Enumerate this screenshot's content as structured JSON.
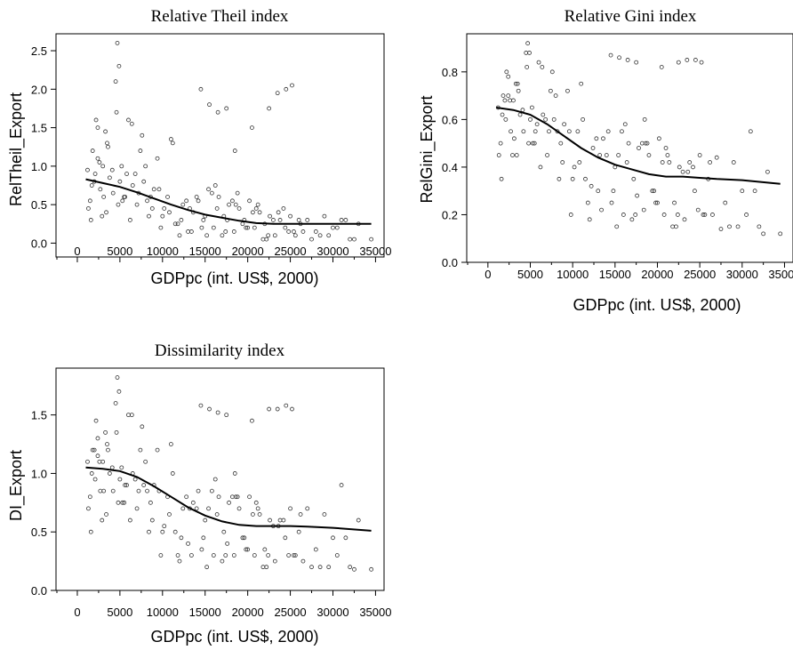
{
  "chart_data": [
    {
      "type": "scatter",
      "title": "Relative Theil index",
      "xlabel": "GDPpc (int. US$, 2000)",
      "ylabel": "RelTheil_Export",
      "xlim": [
        -2500,
        36000
      ],
      "ylim": [
        -0.18,
        2.72
      ],
      "xticks": [
        "0",
        "5000",
        "10000",
        "15000",
        "20000",
        "25000",
        "30000",
        "35000"
      ],
      "yticks": [
        "0.0",
        "0.5",
        "1.0",
        "1.5",
        "2.0",
        "2.5"
      ],
      "grid": false,
      "legend": "none",
      "fit_line": {
        "x": [
          1000,
          3000,
          5000,
          7000,
          9000,
          11000,
          13000,
          15000,
          17000,
          19000,
          21000,
          23000,
          25000,
          27000,
          30000,
          34500
        ],
        "y": [
          0.83,
          0.78,
          0.73,
          0.66,
          0.58,
          0.5,
          0.43,
          0.37,
          0.33,
          0.29,
          0.26,
          0.25,
          0.25,
          0.25,
          0.25,
          0.25
        ]
      },
      "points": {
        "x": [
          1200,
          1500,
          1800,
          2100,
          2400,
          2700,
          3000,
          3400,
          3800,
          4200,
          4600,
          5000,
          5500,
          6000,
          6500,
          7000,
          7600,
          8200,
          8800,
          9400,
          10000,
          10600,
          11200,
          11800,
          12400,
          13000,
          13600,
          14200,
          14800,
          15400,
          16000,
          16600,
          17200,
          17800,
          18400,
          19000,
          19600,
          20200,
          20800,
          21400,
          22000,
          22600,
          23200,
          23800,
          24400,
          25000,
          25600,
          26200,
          27000,
          28000,
          29000,
          30000,
          31000,
          32000,
          33000,
          34500,
          1300,
          1700,
          2200,
          2600,
          3100,
          3600,
          4100,
          4500,
          4800,
          5200,
          5800,
          6400,
          7200,
          8000,
          9000,
          10200,
          11500,
          12800,
          14000,
          15200,
          16400,
          17600,
          18800,
          20000,
          21200,
          22400,
          23600,
          24800,
          26000,
          27500,
          29500,
          31500,
          14500,
          15500,
          16500,
          17500,
          18500,
          20500,
          22500,
          23500,
          24500,
          25200,
          4700,
          4900,
          2000,
          2900,
          3300,
          6200,
          6800,
          7800,
          8600,
          9800,
          10800,
          12000,
          13200,
          14600,
          15800,
          17000,
          18200,
          19400,
          20600,
          21800,
          23000,
          24200,
          25400,
          1600,
          2400,
          3500,
          5300,
          5600,
          7400,
          8400,
          9600,
          11000,
          12200,
          13400,
          15000,
          16200,
          17400,
          18600,
          19800,
          21000,
          22200,
          26500,
          28500,
          30500,
          32500
        ],
        "y": [
          0.95,
          0.55,
          1.2,
          0.9,
          1.5,
          0.7,
          1.0,
          0.4,
          0.85,
          0.65,
          1.7,
          0.8,
          0.6,
          1.6,
          0.75,
          0.5,
          1.4,
          0.55,
          0.45,
          1.1,
          0.35,
          0.6,
          1.3,
          0.25,
          0.5,
          0.15,
          0.4,
          0.55,
          0.3,
          0.7,
          0.2,
          0.6,
          0.35,
          0.5,
          0.15,
          0.45,
          0.3,
          0.55,
          0.2,
          0.4,
          0.25,
          0.35,
          0.1,
          0.3,
          0.2,
          0.35,
          0.1,
          0.25,
          0.3,
          0.15,
          0.35,
          0.2,
          0.3,
          0.05,
          0.25,
          0.05,
          0.45,
          0.75,
          1.6,
          1.05,
          0.6,
          1.25,
          0.95,
          2.1,
          0.5,
          1.0,
          0.9,
          1.55,
          0.65,
          1.0,
          0.7,
          0.45,
          0.25,
          0.55,
          0.6,
          0.1,
          0.45,
          0.3,
          0.65,
          0.2,
          0.5,
          0.1,
          0.4,
          0.15,
          0.3,
          0.05,
          0.1,
          0.3,
          2.0,
          1.8,
          1.7,
          1.75,
          1.2,
          1.5,
          1.75,
          1.95,
          2.0,
          2.05,
          2.6,
          2.3,
          0.8,
          0.35,
          1.45,
          0.3,
          0.9,
          0.8,
          0.6,
          0.2,
          0.4,
          0.1,
          0.45,
          0.2,
          0.65,
          0.1,
          0.55,
          0.25,
          0.4,
          0.05,
          0.3,
          0.45,
          0.15,
          0.3,
          1.1,
          1.3,
          0.55,
          0.6,
          1.2,
          0.35,
          0.7,
          1.35,
          0.3,
          0.15,
          0.35,
          0.75,
          0.15,
          0.5,
          0.2,
          0.45,
          0.05,
          0.15,
          0.1,
          0.2,
          0.05
        ]
      }
    },
    {
      "type": "scatter",
      "title": "Relative Gini index",
      "xlabel": "GDPpc (int. US$, 2000)",
      "ylabel": "RelGini_Export",
      "xlim": [
        -2500,
        36000
      ],
      "ylim": [
        0.0,
        0.96
      ],
      "xticks": [
        "0",
        "5000",
        "10000",
        "15000",
        "20000",
        "25000",
        "30000",
        "35000"
      ],
      "yticks": [
        "0.0",
        "0.2",
        "0.4",
        "0.6",
        "0.8"
      ],
      "grid": false,
      "legend": "none",
      "fit_line": {
        "x": [
          1000,
          3000,
          5000,
          7000,
          9000,
          11000,
          13000,
          15000,
          17000,
          19000,
          21000,
          23000,
          25000,
          27000,
          30000,
          34500
        ],
        "y": [
          0.65,
          0.64,
          0.62,
          0.58,
          0.53,
          0.48,
          0.44,
          0.41,
          0.39,
          0.37,
          0.36,
          0.36,
          0.355,
          0.35,
          0.345,
          0.33
        ]
      },
      "points": {
        "x": [
          1200,
          1500,
          1800,
          2100,
          2400,
          2700,
          3000,
          3400,
          3800,
          4200,
          4600,
          5000,
          5500,
          6000,
          6500,
          7000,
          7600,
          8200,
          8800,
          9400,
          10000,
          10600,
          11200,
          11800,
          12400,
          13000,
          13600,
          14200,
          14800,
          15400,
          16000,
          16600,
          17200,
          17800,
          18400,
          19000,
          19600,
          20200,
          20800,
          21400,
          22000,
          22600,
          23200,
          23800,
          24400,
          25000,
          25600,
          26200,
          27000,
          28000,
          29000,
          30000,
          31000,
          32000,
          33000,
          34500,
          1300,
          1700,
          2200,
          2600,
          3100,
          3600,
          4100,
          4500,
          4800,
          5200,
          5800,
          6400,
          7200,
          8000,
          9000,
          10200,
          11500,
          12800,
          14000,
          15200,
          16400,
          17600,
          18800,
          20000,
          21200,
          22400,
          23600,
          24800,
          26000,
          27500,
          29500,
          31500,
          14500,
          15500,
          16500,
          17500,
          18500,
          20500,
          22500,
          23500,
          24500,
          25200,
          4700,
          4900,
          2000,
          2900,
          3300,
          6200,
          6800,
          7800,
          8600,
          9800,
          10800,
          12000,
          13200,
          14600,
          15800,
          17000,
          18200,
          19400,
          20600,
          21800,
          23000,
          24200,
          25400,
          1600,
          2400,
          3500,
          5300,
          5600,
          7400,
          8400,
          9600,
          11000,
          12200,
          13400,
          15000,
          16200,
          17400,
          18600,
          19800,
          21000,
          22200,
          26500,
          28500,
          30500,
          32500
        ],
        "y": [
          0.65,
          0.5,
          0.7,
          0.6,
          0.78,
          0.55,
          0.68,
          0.45,
          0.62,
          0.55,
          0.82,
          0.6,
          0.5,
          0.84,
          0.62,
          0.45,
          0.8,
          0.55,
          0.42,
          0.72,
          0.35,
          0.55,
          0.6,
          0.25,
          0.48,
          0.3,
          0.52,
          0.55,
          0.3,
          0.45,
          0.2,
          0.5,
          0.35,
          0.48,
          0.22,
          0.45,
          0.3,
          0.52,
          0.2,
          0.42,
          0.25,
          0.4,
          0.18,
          0.42,
          0.3,
          0.45,
          0.2,
          0.42,
          0.44,
          0.25,
          0.42,
          0.3,
          0.55,
          0.15,
          0.38,
          0.12,
          0.45,
          0.62,
          0.8,
          0.68,
          0.52,
          0.72,
          0.64,
          0.88,
          0.5,
          0.65,
          0.58,
          0.82,
          0.55,
          0.7,
          0.58,
          0.4,
          0.35,
          0.52,
          0.45,
          0.15,
          0.42,
          0.28,
          0.5,
          0.25,
          0.45,
          0.2,
          0.38,
          0.22,
          0.35,
          0.14,
          0.15,
          0.3,
          0.87,
          0.86,
          0.85,
          0.84,
          0.6,
          0.82,
          0.84,
          0.85,
          0.85,
          0.84,
          0.92,
          0.88,
          0.68,
          0.45,
          0.75,
          0.4,
          0.6,
          0.6,
          0.5,
          0.2,
          0.42,
          0.18,
          0.45,
          0.25,
          0.55,
          0.18,
          0.5,
          0.3,
          0.42,
          0.15,
          0.38,
          0.4,
          0.2,
          0.35,
          0.7,
          0.75,
          0.5,
          0.55,
          0.72,
          0.35,
          0.55,
          0.75,
          0.32,
          0.22,
          0.4,
          0.58,
          0.2,
          0.5,
          0.25,
          0.48,
          0.15,
          0.2,
          0.15,
          0.2,
          0.12
        ]
      }
    },
    {
      "type": "scatter",
      "title": "Dissimilarity index",
      "xlabel": "GDPpc (int. US$, 2000)",
      "ylabel": "DI_Export",
      "xlim": [
        -2500,
        36000
      ],
      "ylim": [
        0.0,
        1.9
      ],
      "xticks": [
        "0",
        "5000",
        "10000",
        "15000",
        "20000",
        "25000",
        "30000",
        "35000"
      ],
      "yticks": [
        "0.0",
        "0.5",
        "1.0",
        "1.5"
      ],
      "grid": false,
      "legend": "none",
      "fit_line": {
        "x": [
          1000,
          3000,
          5000,
          7000,
          9000,
          11000,
          13000,
          15000,
          17000,
          19000,
          21000,
          23000,
          25000,
          27000,
          30000,
          34500
        ],
        "y": [
          1.05,
          1.04,
          1.02,
          0.97,
          0.89,
          0.8,
          0.71,
          0.64,
          0.59,
          0.56,
          0.55,
          0.55,
          0.55,
          0.545,
          0.535,
          0.51
        ]
      },
      "points": {
        "x": [
          1200,
          1500,
          1800,
          2100,
          2400,
          2700,
          3000,
          3400,
          3800,
          4200,
          4600,
          5000,
          5500,
          6000,
          6500,
          7000,
          7600,
          8200,
          8800,
          9400,
          10000,
          10600,
          11200,
          11800,
          12400,
          13000,
          13600,
          14200,
          14800,
          15400,
          16000,
          16600,
          17200,
          17800,
          18400,
          19000,
          19600,
          20200,
          20800,
          21400,
          22000,
          22600,
          23200,
          23800,
          24400,
          25000,
          25600,
          26200,
          27000,
          28000,
          29000,
          30000,
          31000,
          32000,
          33000,
          34500,
          1300,
          1700,
          2200,
          2600,
          3100,
          3600,
          4100,
          4500,
          4800,
          5200,
          5800,
          6400,
          7200,
          8000,
          9000,
          10200,
          11500,
          12800,
          14000,
          15200,
          16400,
          17600,
          18800,
          20000,
          21200,
          22400,
          23600,
          24800,
          26000,
          27500,
          29500,
          31500,
          14500,
          15500,
          16500,
          17500,
          18500,
          20500,
          22500,
          23500,
          24500,
          25200,
          4700,
          4900,
          2000,
          2900,
          3300,
          6200,
          6800,
          7800,
          8600,
          9800,
          10800,
          12000,
          13200,
          14600,
          15800,
          17000,
          18200,
          19400,
          20600,
          21800,
          23000,
          24200,
          25400,
          1600,
          2400,
          3500,
          5300,
          5600,
          7400,
          8400,
          9600,
          11000,
          12200,
          13400,
          15000,
          16200,
          17400,
          18600,
          19800,
          21000,
          22200,
          26500,
          28500,
          30500,
          32500
        ],
        "y": [
          1.1,
          0.8,
          1.2,
          0.95,
          1.3,
          0.85,
          1.1,
          0.65,
          1.0,
          0.85,
          1.35,
          0.95,
          0.75,
          1.5,
          1.0,
          0.7,
          1.4,
          0.85,
          0.6,
          1.2,
          0.5,
          0.8,
          1.0,
          0.3,
          0.7,
          0.4,
          0.75,
          0.85,
          0.45,
          0.7,
          0.3,
          0.8,
          0.5,
          0.75,
          0.3,
          0.7,
          0.45,
          0.8,
          0.3,
          0.65,
          0.35,
          0.6,
          0.25,
          0.6,
          0.45,
          0.7,
          0.3,
          0.65,
          0.7,
          0.35,
          0.65,
          0.45,
          0.9,
          0.2,
          0.6,
          0.18,
          0.7,
          1.0,
          1.45,
          1.1,
          0.85,
          1.2,
          1.05,
          1.6,
          0.75,
          1.05,
          0.9,
          1.5,
          0.85,
          1.1,
          0.9,
          0.55,
          0.5,
          0.8,
          0.7,
          0.2,
          0.65,
          0.4,
          0.8,
          0.35,
          0.7,
          0.3,
          0.55,
          0.3,
          0.5,
          0.2,
          0.2,
          0.45,
          1.58,
          1.55,
          1.52,
          1.5,
          1.0,
          1.45,
          1.55,
          1.55,
          1.58,
          1.55,
          1.82,
          1.7,
          1.2,
          0.6,
          1.35,
          0.6,
          0.95,
          0.9,
          0.75,
          0.3,
          0.65,
          0.25,
          0.7,
          0.35,
          0.85,
          0.25,
          0.8,
          0.45,
          0.65,
          0.2,
          0.55,
          0.6,
          0.3,
          0.5,
          1.15,
          1.25,
          0.75,
          0.9,
          1.2,
          0.5,
          0.85,
          1.25,
          0.45,
          0.3,
          0.6,
          0.95,
          0.3,
          0.8,
          0.35,
          0.75,
          0.2,
          0.25,
          0.2,
          0.3,
          0.18
        ]
      }
    }
  ]
}
